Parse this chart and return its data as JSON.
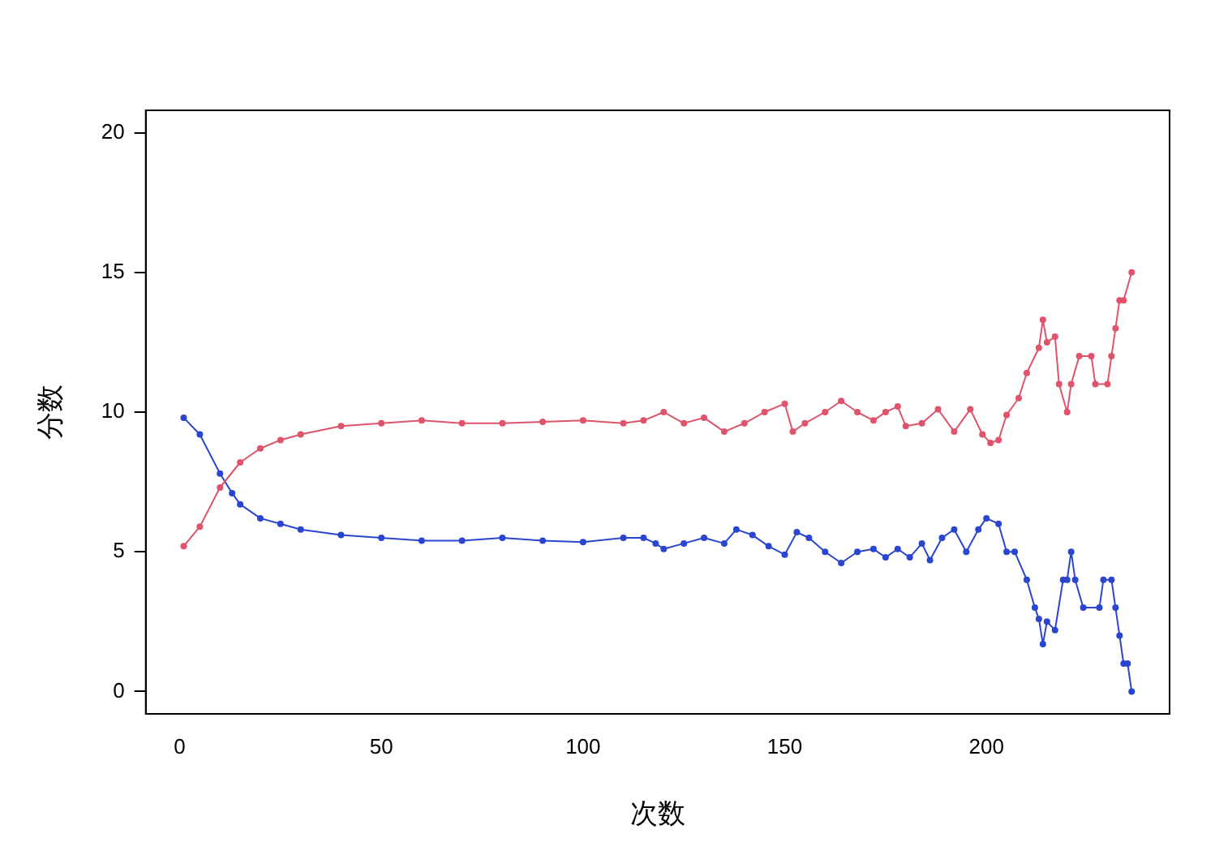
{
  "chart_data": {
    "type": "line",
    "xlabel": "次数",
    "ylabel": "分数",
    "xlim": [
      -8.4,
      245.4
    ],
    "ylim": [
      -0.8,
      20.8
    ],
    "xticks": [
      0,
      50,
      100,
      150,
      200
    ],
    "yticks": [
      0,
      5,
      10,
      15,
      20
    ],
    "grid": false,
    "legend": false,
    "marker": "circle",
    "line_style": "solid",
    "series": [
      {
        "color": "#df536b",
        "x": [
          1,
          5,
          10,
          15,
          20,
          25,
          30,
          40,
          50,
          60,
          70,
          80,
          90,
          100,
          110,
          115,
          120,
          125,
          130,
          135,
          140,
          145,
          150,
          152,
          155,
          160,
          164,
          168,
          172,
          175,
          178,
          180,
          184,
          188,
          192,
          196,
          199,
          201,
          203,
          205,
          208,
          210,
          213,
          214,
          215,
          217,
          218,
          220,
          221,
          223,
          226,
          227,
          230,
          231,
          232,
          233,
          234,
          236
        ],
        "values": [
          5.2,
          5.9,
          7.3,
          8.2,
          8.7,
          9.0,
          9.2,
          9.5,
          9.6,
          9.7,
          9.6,
          9.6,
          9.65,
          9.7,
          9.6,
          9.7,
          10.0,
          9.6,
          9.8,
          9.3,
          9.6,
          10.0,
          10.3,
          9.3,
          9.6,
          10.0,
          10.4,
          10.0,
          9.7,
          10.0,
          10.2,
          9.5,
          9.6,
          10.1,
          9.3,
          10.1,
          9.2,
          8.9,
          9.0,
          9.9,
          10.5,
          11.4,
          12.3,
          13.3,
          12.5,
          12.7,
          11.0,
          10.0,
          11.0,
          12.0,
          12.0,
          11.0,
          11.0,
          12.0,
          13.0,
          14.0,
          14.0,
          15.0
        ]
      },
      {
        "color": "#2a45d0",
        "x": [
          1,
          5,
          10,
          13,
          15,
          20,
          25,
          30,
          40,
          50,
          60,
          70,
          80,
          90,
          100,
          110,
          115,
          118,
          120,
          125,
          130,
          135,
          138,
          142,
          146,
          150,
          153,
          156,
          160,
          164,
          168,
          172,
          175,
          178,
          181,
          184,
          186,
          189,
          192,
          195,
          198,
          200,
          203,
          205,
          207,
          210,
          212,
          213,
          214,
          215,
          217,
          219,
          220,
          221,
          222,
          224,
          228,
          229,
          231,
          232,
          233,
          234,
          235,
          236
        ],
        "values": [
          9.8,
          9.2,
          7.8,
          7.1,
          6.7,
          6.2,
          6.0,
          5.8,
          5.6,
          5.5,
          5.4,
          5.4,
          5.5,
          5.4,
          5.35,
          5.5,
          5.5,
          5.3,
          5.1,
          5.3,
          5.5,
          5.3,
          5.8,
          5.6,
          5.2,
          4.9,
          5.7,
          5.5,
          5.0,
          4.6,
          5.0,
          5.1,
          4.8,
          5.1,
          4.8,
          5.3,
          4.7,
          5.5,
          5.8,
          5.0,
          5.8,
          6.2,
          6.0,
          5.0,
          5.0,
          4.0,
          3.0,
          2.6,
          1.7,
          2.5,
          2.2,
          4.0,
          4.0,
          5.0,
          4.0,
          3.0,
          3.0,
          4.0,
          4.0,
          3.0,
          2.0,
          1.0,
          1.0,
          0.0
        ]
      }
    ]
  }
}
